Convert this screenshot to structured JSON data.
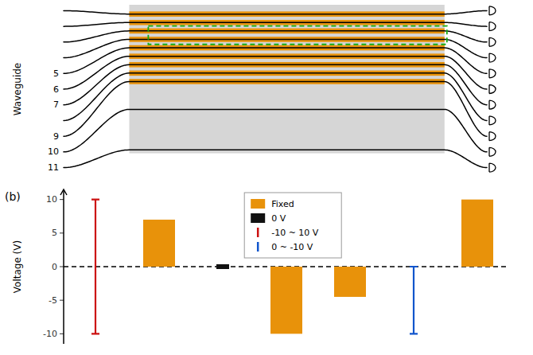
{
  "chart_data": [
    {
      "type": "schematic",
      "y_label": "Waveguide",
      "categories": [
        null,
        null,
        null,
        null,
        "5",
        "6",
        "7",
        null,
        "9",
        "10",
        "11"
      ],
      "electrode": [
        true,
        true,
        true,
        true,
        true,
        true,
        true,
        true,
        true,
        false,
        false
      ],
      "highlight": [
        false,
        false,
        true,
        true,
        false,
        false,
        false,
        false,
        false,
        false,
        false
      ],
      "color": "#e8920a"
    },
    {
      "type": "bar",
      "title": "(b)",
      "y_label": "Voltage (V)",
      "categories": [
        null,
        null,
        null,
        null,
        null,
        null,
        null
      ],
      "series": [
        {
          "name": "Fixed",
          "type": "bar",
          "color": "#e8920a",
          "values": [
            null,
            7.0,
            null,
            -10.0,
            -4.5,
            null,
            10.0
          ]
        },
        {
          "name": "0 V",
          "type": "bar",
          "color": "#111111",
          "values": [
            null,
            null,
            0.0,
            null,
            null,
            null,
            null
          ]
        },
        {
          "name": "-10 ~ 10 V",
          "type": "range",
          "color": "#cc1111",
          "values": [
            10,
            null,
            null,
            null,
            null,
            null,
            null
          ],
          "low": [
            -10,
            null,
            null,
            null,
            null,
            null,
            null
          ]
        },
        {
          "name": "0 ~ -10 V",
          "type": "range",
          "color": "#1155cc",
          "values": [
            null,
            null,
            null,
            null,
            null,
            0,
            null
          ],
          "low": [
            null,
            null,
            null,
            null,
            null,
            -10,
            null
          ]
        }
      ],
      "ylim": [
        -11.5,
        11.5
      ],
      "yticks": [
        -10,
        -5,
        0,
        5,
        10
      ],
      "legend": "top"
    }
  ]
}
